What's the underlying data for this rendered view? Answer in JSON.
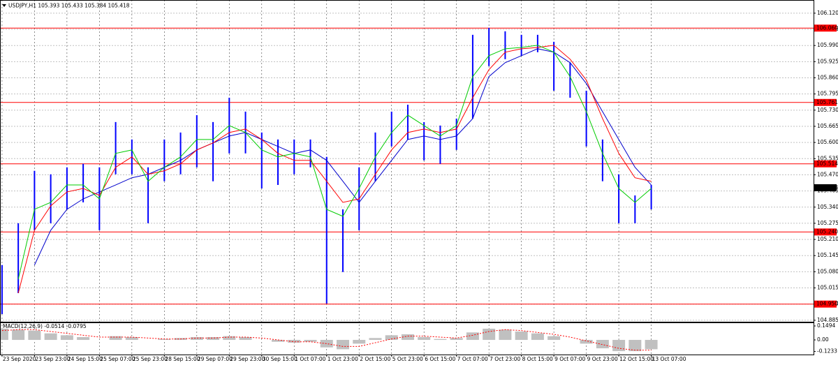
{
  "chart_data": [
    {
      "type": "ohlc",
      "title": "USDJPY,H1 105.393 105.433 105.384 105.418",
      "x": [
        0,
        8,
        16,
        24,
        32,
        40,
        48,
        56,
        64,
        72,
        80,
        88,
        96,
        104,
        112,
        120,
        128,
        136,
        144,
        152,
        160,
        168,
        176,
        184,
        192,
        200,
        208,
        216,
        224,
        232,
        240,
        248,
        256,
        264,
        272,
        280,
        288,
        296,
        304,
        312,
        320
      ],
      "xlim": [
        -1,
        400
      ],
      "xticks": [
        {
          "value": 0,
          "label": "23 Sep 2020"
        },
        {
          "value": 16,
          "label": "23 Sep 23:00"
        },
        {
          "value": 32,
          "label": "24 Sep 15:00"
        },
        {
          "value": 48,
          "label": "25 Sep 07:00"
        },
        {
          "value": 64,
          "label": "25 Sep 23:00"
        },
        {
          "value": 80,
          "label": "28 Sep 15:00"
        },
        {
          "value": 96,
          "label": "29 Sep 07:00"
        },
        {
          "value": 112,
          "label": "29 Sep 23:00"
        },
        {
          "value": 128,
          "label": "30 Sep 15:00"
        },
        {
          "value": 144,
          "label": "1 Oct 07:00"
        },
        {
          "value": 160,
          "label": "1 Oct 23:00"
        },
        {
          "value": 176,
          "label": "2 Oct 15:00"
        },
        {
          "value": 192,
          "label": "5 Oct 23:00"
        },
        {
          "value": 208,
          "label": "6 Oct 15:00"
        },
        {
          "value": 224,
          "label": "7 Oct 07:00"
        },
        {
          "value": 240,
          "label": "7 Oct 23:00"
        },
        {
          "value": 256,
          "label": "8 Oct 15:00"
        },
        {
          "value": 272,
          "label": "9 Oct 07:00"
        },
        {
          "value": 288,
          "label": "9 Oct 23:00"
        },
        {
          "value": 304,
          "label": "12 Oct 15:00"
        },
        {
          "value": 320,
          "label": "13 Oct 07:00"
        }
      ],
      "ylim": [
        104.879,
        106.173
      ],
      "yticks": [
        {
          "value": 106.12,
          "label": "106.120"
        },
        106.055,
        {
          "value": 105.99,
          "label": "105.990"
        },
        105.925,
        {
          "value": 105.86,
          "label": "105.860"
        },
        105.795,
        {
          "value": 105.73,
          "label": "105.730"
        },
        105.665,
        {
          "value": 105.6,
          "label": "105.600"
        },
        105.535,
        {
          "value": 105.47,
          "label": "105.470"
        },
        105.405,
        {
          "value": 105.34,
          "label": "105.340"
        },
        105.275,
        {
          "value": 105.21,
          "label": "105.210"
        },
        105.145,
        {
          "value": 105.08,
          "label": "105.080"
        },
        105.015,
        {
          "value": 104.95,
          "label": "104.950"
        },
        104.885
      ],
      "grid": true,
      "price": {
        "color": "#0000ff",
        "high": [
          105.107,
          105.275,
          105.486,
          105.472,
          105.5,
          105.514,
          105.5,
          105.682,
          105.612,
          105.5,
          105.612,
          105.64,
          105.71,
          105.682,
          105.78,
          105.724,
          105.64,
          105.612,
          105.612,
          105.612,
          105.542,
          105.331,
          105.5,
          105.64,
          105.724,
          105.752,
          105.682,
          105.668,
          105.696,
          106.033,
          106.061,
          106.047,
          106.033,
          106.033,
          106.005,
          105.921,
          105.808,
          105.612,
          105.472,
          105.387,
          105.429
        ],
        "low": [
          104.91,
          104.994,
          105.247,
          105.275,
          105.331,
          105.359,
          105.247,
          105.472,
          105.472,
          105.275,
          105.444,
          105.472,
          105.5,
          105.444,
          105.556,
          105.556,
          105.415,
          105.429,
          105.472,
          105.5,
          104.952,
          105.079,
          105.247,
          105.444,
          105.584,
          105.612,
          105.528,
          105.514,
          105.57,
          105.696,
          105.907,
          105.935,
          105.949,
          105.963,
          105.808,
          105.78,
          105.584,
          105.444,
          105.275,
          105.275,
          105.331
        ]
      },
      "series": [
        {
          "color": "#0000cc",
          "values": [
            null,
            null,
            105.107,
            105.247,
            105.331,
            105.373,
            105.401,
            105.429,
            105.458,
            105.472,
            105.5,
            105.528,
            105.57,
            105.598,
            105.626,
            105.64,
            105.612,
            105.584,
            105.556,
            105.57,
            105.528,
            105.444,
            105.359,
            105.444,
            105.528,
            105.612,
            105.626,
            105.612,
            105.626,
            105.696,
            105.865,
            105.921,
            105.949,
            105.977,
            105.963,
            105.921,
            105.837,
            105.724,
            105.612,
            105.5,
            105.429
          ]
        },
        {
          "color": "#ff0000",
          "values": [
            null,
            104.994,
            105.247,
            105.345,
            105.401,
            105.415,
            105.387,
            105.5,
            105.542,
            105.472,
            105.486,
            105.514,
            105.57,
            105.598,
            105.64,
            105.654,
            105.612,
            105.556,
            105.528,
            105.528,
            105.444,
            105.359,
            105.373,
            105.472,
            105.57,
            105.64,
            105.654,
            105.64,
            105.654,
            105.78,
            105.893,
            105.963,
            105.977,
            105.982,
            105.991,
            105.935,
            105.851,
            105.696,
            105.556,
            105.458,
            105.444
          ]
        },
        {
          "color": "#00cc00",
          "values": [
            null,
            105.05,
            105.331,
            105.359,
            105.429,
            105.429,
            105.373,
            105.556,
            105.57,
            105.444,
            105.5,
            105.542,
            105.612,
            105.612,
            105.668,
            105.64,
            105.57,
            105.542,
            105.556,
            105.542,
            105.331,
            105.303,
            105.415,
            105.542,
            105.64,
            105.71,
            105.668,
            105.626,
            105.668,
            105.865,
            105.949,
            105.977,
            105.982,
            105.991,
            105.963,
            105.865,
            105.724,
            105.556,
            105.415,
            105.359,
            105.415
          ]
        }
      ],
      "levels": [
        {
          "value": 106.06,
          "label": "106.060",
          "color": "#ff0000"
        },
        {
          "value": 105.761,
          "label": "105.761",
          "color": "#ff0000"
        },
        {
          "value": 105.514,
          "label": "105.514",
          "color": "#ff0000"
        },
        {
          "value": 105.24,
          "label": "105.240",
          "color": "#ff0000"
        },
        {
          "value": 104.95,
          "label": "104.950",
          "color": "#ff0000"
        }
      ],
      "current_price": 105.418
    },
    {
      "type": "macd",
      "title": "MACD(12,26,9) -0.0514 -0.0795",
      "x": [
        0,
        8,
        16,
        24,
        32,
        40,
        48,
        56,
        64,
        72,
        80,
        88,
        96,
        104,
        112,
        120,
        128,
        136,
        144,
        152,
        160,
        168,
        176,
        184,
        192,
        200,
        208,
        216,
        224,
        232,
        240,
        248,
        256,
        264,
        272,
        280,
        288,
        296,
        304,
        312,
        320
      ],
      "xlim": [
        -1,
        400
      ],
      "ylim": [
        -0.164,
        0.187
      ],
      "yticks": [
        0.1494,
        {
          "value": 0,
          "label": "0.00"
        },
        -0.1233
      ],
      "histogram": {
        "color": "#c0c0c0",
        "values": [
          0.12,
          0.11,
          0.1,
          0.07,
          0.05,
          0.03,
          0,
          0.04,
          0.03,
          0,
          0.01,
          0.02,
          0.03,
          0.03,
          0.04,
          0.03,
          0,
          -0.02,
          -0.03,
          -0.02,
          -0.08,
          -0.1,
          -0.04,
          0.02,
          0.05,
          0.06,
          0.03,
          0.01,
          0.02,
          0.08,
          0.12,
          0.11,
          0.09,
          0.07,
          0.04,
          0,
          -0.04,
          -0.09,
          -0.12,
          -0.12,
          -0.1
        ]
      },
      "signal": {
        "color": "#ff0000",
        "values": [
          0.1,
          0.11,
          0.11,
          0.09,
          0.07,
          0.05,
          0.03,
          0.03,
          0.03,
          0.02,
          0.01,
          0.01,
          0.02,
          0.02,
          0.03,
          0.03,
          0.02,
          0,
          -0.02,
          -0.02,
          -0.04,
          -0.07,
          -0.07,
          -0.03,
          0.01,
          0.04,
          0.04,
          0.03,
          0.02,
          0.05,
          0.09,
          0.11,
          0.1,
          0.08,
          0.06,
          0.03,
          -0.01,
          -0.05,
          -0.09,
          -0.11,
          -0.11
        ]
      }
    }
  ]
}
